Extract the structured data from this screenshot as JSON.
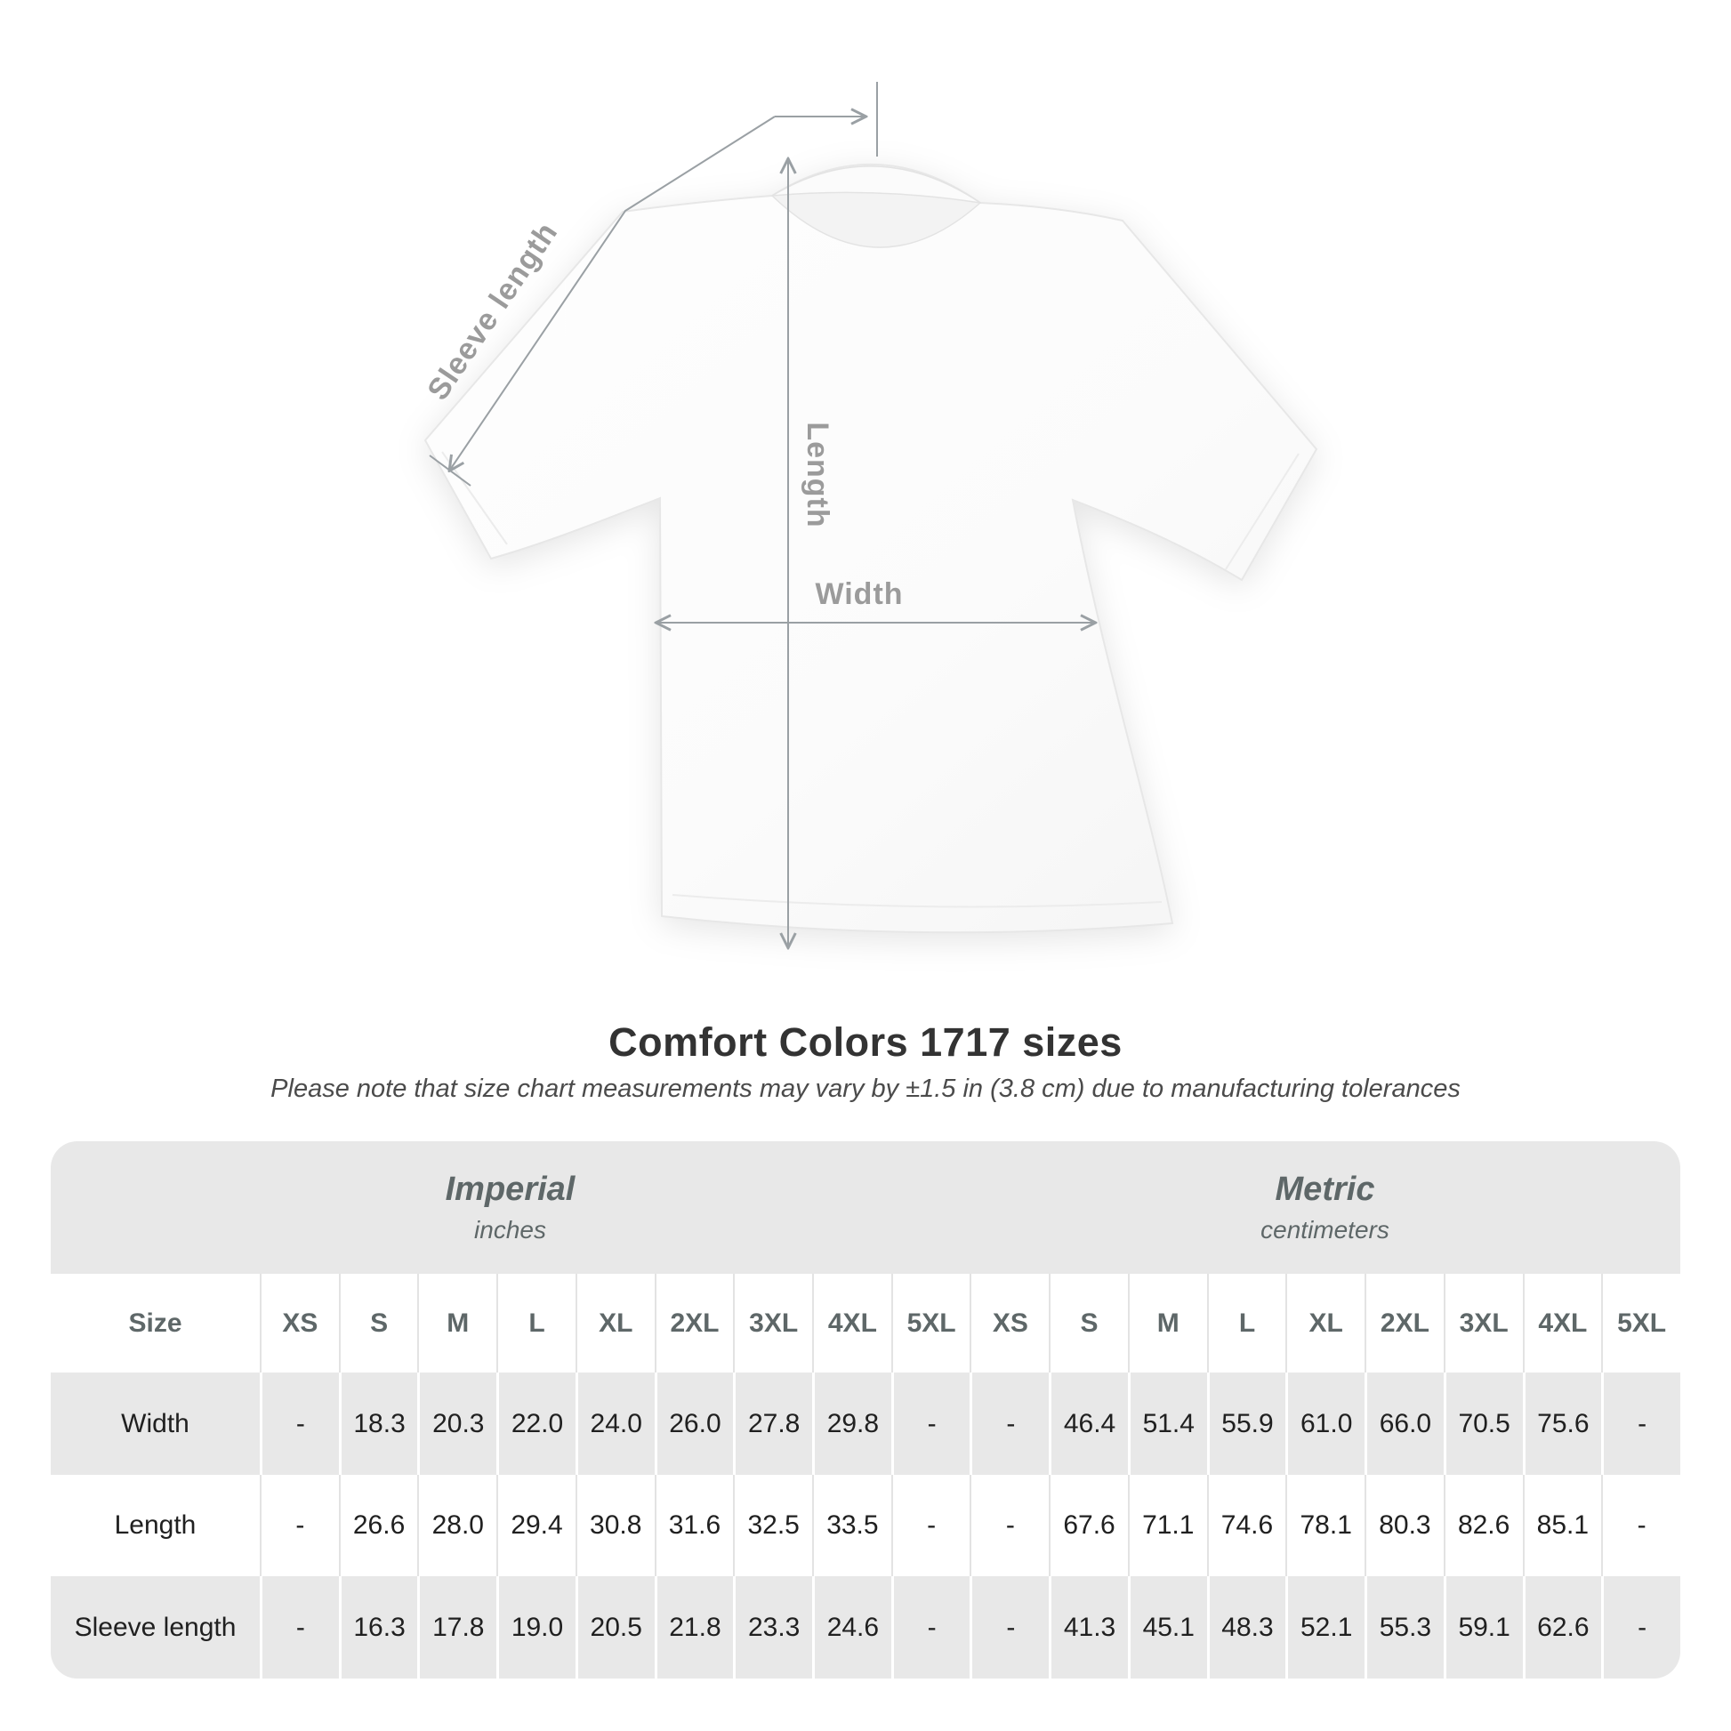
{
  "diagram": {
    "labels": {
      "sleeve_length": "Sleeve length",
      "length": "Length",
      "width": "Width"
    }
  },
  "section": {
    "title": "Comfort Colors 1717 sizes",
    "subtitle": "Please note that size chart measurements may vary by ±1.5 in (3.8 cm) due to manufacturing tolerances"
  },
  "table": {
    "unit_groups": [
      {
        "name": "Imperial",
        "sub": "inches"
      },
      {
        "name": "Metric",
        "sub": "centimeters"
      }
    ],
    "size_header_label": "Size",
    "sizes": [
      "XS",
      "S",
      "M",
      "L",
      "XL",
      "2XL",
      "3XL",
      "4XL",
      "5XL"
    ],
    "rows": [
      {
        "label": "Width",
        "imperial": [
          "-",
          "18.3",
          "20.3",
          "22.0",
          "24.0",
          "26.0",
          "27.8",
          "29.8",
          "-"
        ],
        "metric": [
          "-",
          "46.4",
          "51.4",
          "55.9",
          "61.0",
          "66.0",
          "70.5",
          "75.6",
          "-"
        ]
      },
      {
        "label": "Length",
        "imperial": [
          "-",
          "26.6",
          "28.0",
          "29.4",
          "30.8",
          "31.6",
          "32.5",
          "33.5",
          "-"
        ],
        "metric": [
          "-",
          "67.6",
          "71.1",
          "74.6",
          "78.1",
          "80.3",
          "82.6",
          "85.1",
          "-"
        ]
      },
      {
        "label": "Sleeve length",
        "imperial": [
          "-",
          "16.3",
          "17.8",
          "19.0",
          "20.5",
          "21.8",
          "23.3",
          "24.6",
          "-"
        ],
        "metric": [
          "-",
          "41.3",
          "45.1",
          "48.3",
          "52.1",
          "55.3",
          "59.1",
          "62.6",
          "-"
        ]
      }
    ]
  },
  "chart_data": {
    "type": "table",
    "title": "Comfort Colors 1717 sizes",
    "note": "Measurements may vary by ±1.5 in (3.8 cm) due to manufacturing tolerances",
    "unit_groups": [
      "Imperial (inches)",
      "Metric (centimeters)"
    ],
    "sizes": [
      "XS",
      "S",
      "M",
      "L",
      "XL",
      "2XL",
      "3XL",
      "4XL",
      "5XL"
    ],
    "rows": [
      {
        "label": "Width",
        "imperial": [
          null,
          18.3,
          20.3,
          22.0,
          24.0,
          26.0,
          27.8,
          29.8,
          null
        ],
        "metric": [
          null,
          46.4,
          51.4,
          55.9,
          61.0,
          66.0,
          70.5,
          75.6,
          null
        ]
      },
      {
        "label": "Length",
        "imperial": [
          null,
          26.6,
          28.0,
          29.4,
          30.8,
          31.6,
          32.5,
          33.5,
          null
        ],
        "metric": [
          null,
          67.6,
          71.1,
          74.6,
          78.1,
          80.3,
          82.6,
          85.1,
          null
        ]
      },
      {
        "label": "Sleeve length",
        "imperial": [
          null,
          16.3,
          17.8,
          19.0,
          20.5,
          21.8,
          23.3,
          24.6,
          null
        ],
        "metric": [
          null,
          41.3,
          45.1,
          48.3,
          52.1,
          55.3,
          59.1,
          62.6,
          null
        ]
      }
    ]
  },
  "colors": {
    "band_gray": "#e8e8e8",
    "header_text": "#5e6768",
    "value_text": "#202020",
    "arrow_gray": "#9aa0a4",
    "diagram_label_gray": "#9b9b9b"
  }
}
